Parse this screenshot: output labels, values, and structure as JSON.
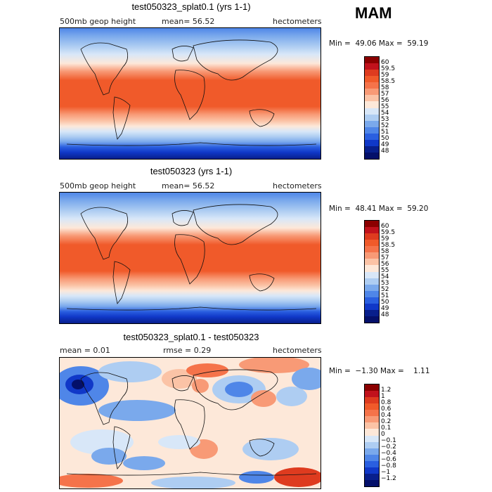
{
  "season": "MAM",
  "panels": [
    {
      "title": "test050323_splat0.1 (yrs 1-1)",
      "field_label": "500mb geop height",
      "mean_text": "mean=  56.52",
      "units": "hectometers",
      "minmax": "Min =  49.06 Max =  59.19",
      "colorbar_labels": [
        "60",
        "59.5",
        "59",
        "58.5",
        "58",
        "57",
        "56",
        "55",
        "54",
        "53",
        "52",
        "51",
        "50",
        "49",
        "48"
      ]
    },
    {
      "title": "test050323 (yrs 1-1)",
      "field_label": "500mb geop height",
      "mean_text": "mean=  56.52",
      "units": "hectometers",
      "minmax": "Min =  48.41 Max =  59.20",
      "colorbar_labels": [
        "60",
        "59.5",
        "59",
        "58.5",
        "58",
        "57",
        "56",
        "55",
        "54",
        "53",
        "52",
        "51",
        "50",
        "49",
        "48"
      ]
    },
    {
      "title": "test050323_splat0.1 - test050323",
      "field_label": "mean =    0.01",
      "mean_text": "rmse =    0.29",
      "units": "hectometers",
      "minmax": "Min =  −1.30 Max =    1.11",
      "colorbar_labels": [
        "1.2",
        "1",
        "0.8",
        "0.6",
        "0.4",
        "0.2",
        "0.1",
        "0",
        "−0.1",
        "−0.2",
        "−0.4",
        "−0.6",
        "−0.8",
        "−1",
        "−1.2"
      ]
    }
  ],
  "colors": {
    "main_scale": [
      "#8b0000",
      "#c1121c",
      "#de3b1f",
      "#f05a2a",
      "#f5734a",
      "#f89a76",
      "#fbc3a6",
      "#fde8d9",
      "#d8e7f8",
      "#aecdf2",
      "#7aa9ec",
      "#4f86e8",
      "#2a5fe0",
      "#1038c8",
      "#081f8c",
      "#04106a"
    ],
    "diff_scale": [
      "#8b0000",
      "#c1121c",
      "#de3b1f",
      "#f05a2a",
      "#f5734a",
      "#f89a76",
      "#fbc3a6",
      "#fde8d9",
      "#d8e7f8",
      "#aecdf2",
      "#7aa9ec",
      "#4f86e8",
      "#2a5fe0",
      "#1038c8",
      "#081f8c",
      "#04106a"
    ]
  }
}
